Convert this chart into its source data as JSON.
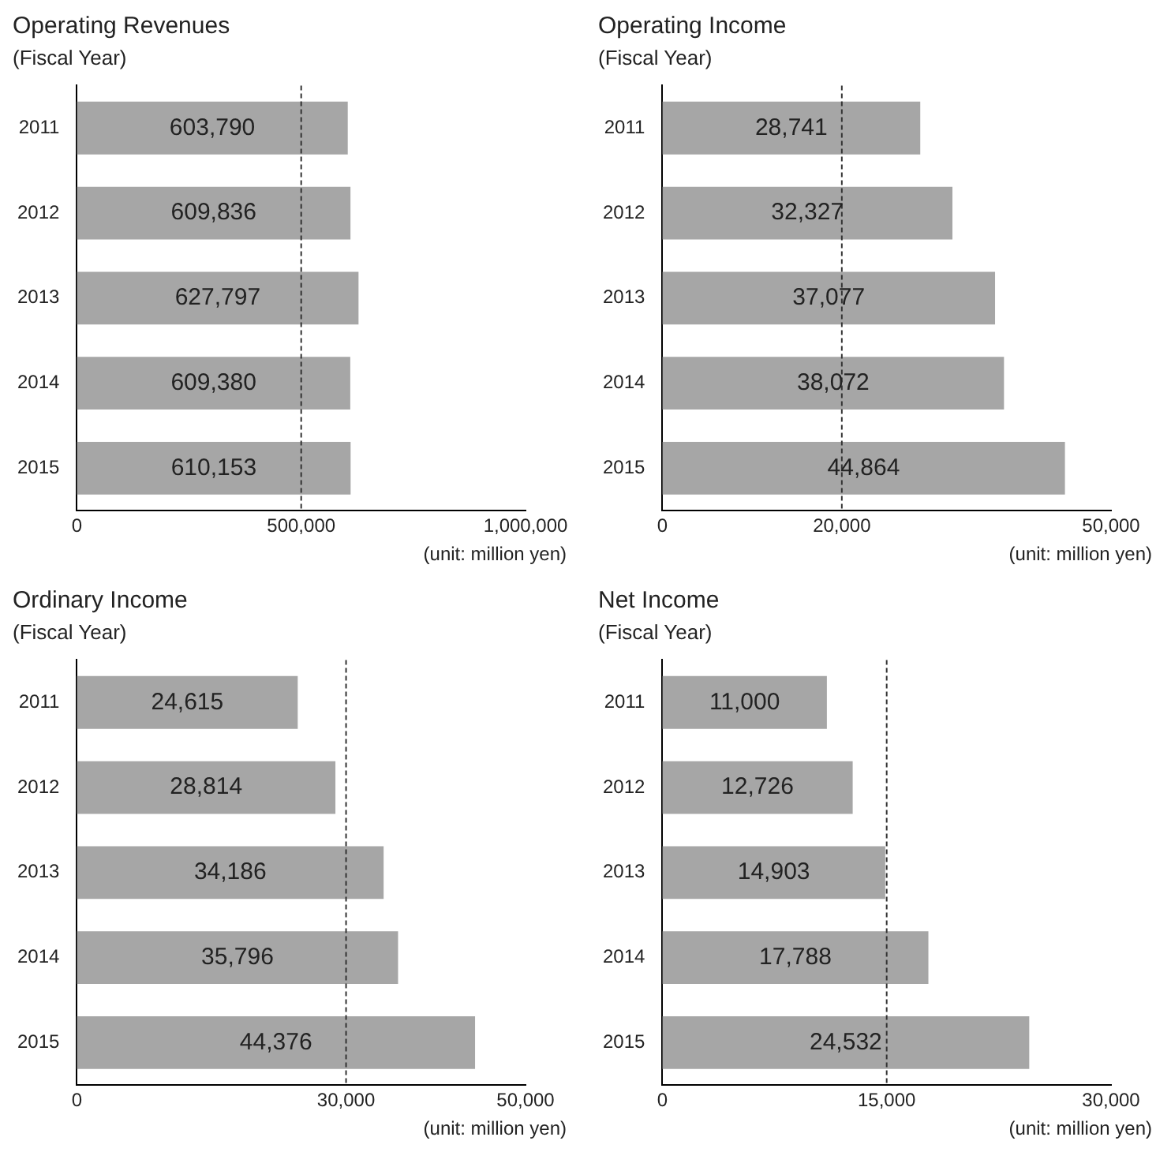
{
  "chart_data": [
    {
      "type": "bar",
      "orientation": "horizontal",
      "title": "Operating Revenues",
      "ylabel": "(Fiscal Year)",
      "categories": [
        "2011",
        "2012",
        "2013",
        "2014",
        "2015"
      ],
      "values": [
        603790,
        609836,
        627797,
        609380,
        610153
      ],
      "value_labels": [
        "603,790",
        "609,836",
        "627,797",
        "609,380",
        "610,153"
      ],
      "color": "#a6a6a6",
      "xlim": [
        0,
        1000000
      ],
      "xticks": [
        {
          "value": 0,
          "label": "0"
        },
        {
          "value": 500000,
          "label": "500,000"
        },
        {
          "value": 1000000,
          "label": "1,000,000"
        }
      ],
      "ref_lines": [
        {
          "axis": "x",
          "value": 500000,
          "line_style": "dashed"
        }
      ],
      "annotations": [
        "(unit: million yen)"
      ]
    },
    {
      "type": "bar",
      "orientation": "horizontal",
      "title": "Operating Income",
      "ylabel": "(Fiscal Year)",
      "categories": [
        "2011",
        "2012",
        "2013",
        "2014",
        "2015"
      ],
      "values": [
        28741,
        32327,
        37077,
        38072,
        44864
      ],
      "value_labels": [
        "28,741",
        "32,327",
        "37,077",
        "38,072",
        "44,864"
      ],
      "color": "#a6a6a6",
      "xlim": [
        0,
        50000
      ],
      "xticks": [
        {
          "value": 0,
          "label": "0"
        },
        {
          "value": 20000,
          "label": "20,000"
        },
        {
          "value": 50000,
          "label": "50,000"
        }
      ],
      "ref_lines": [
        {
          "axis": "x",
          "value": 20000,
          "line_style": "dashed"
        }
      ],
      "annotations": [
        "(unit: million yen)"
      ]
    },
    {
      "type": "bar",
      "orientation": "horizontal",
      "title": "Ordinary Income",
      "ylabel": "(Fiscal Year)",
      "categories": [
        "2011",
        "2012",
        "2013",
        "2014",
        "2015"
      ],
      "values": [
        24615,
        28814,
        34186,
        35796,
        44376
      ],
      "value_labels": [
        "24,615",
        "28,814",
        "34,186",
        "35,796",
        "44,376"
      ],
      "color": "#a6a6a6",
      "xlim": [
        0,
        50000
      ],
      "xticks": [
        {
          "value": 0,
          "label": "0"
        },
        {
          "value": 30000,
          "label": "30,000"
        },
        {
          "value": 50000,
          "label": "50,000"
        }
      ],
      "ref_lines": [
        {
          "axis": "x",
          "value": 30000,
          "line_style": "dashed"
        }
      ],
      "annotations": [
        "(unit: million yen)"
      ]
    },
    {
      "type": "bar",
      "orientation": "horizontal",
      "title": "Net Income",
      "ylabel": "(Fiscal Year)",
      "categories": [
        "2011",
        "2012",
        "2013",
        "2014",
        "2015"
      ],
      "values": [
        11000,
        12726,
        14903,
        17788,
        24532
      ],
      "value_labels": [
        "11,000",
        "12,726",
        "14,903",
        "17,788",
        "24,532"
      ],
      "color": "#a6a6a6",
      "xlim": [
        0,
        30000
      ],
      "xticks": [
        {
          "value": 0,
          "label": "0"
        },
        {
          "value": 15000,
          "label": "15,000"
        },
        {
          "value": 30000,
          "label": "30,000"
        }
      ],
      "ref_lines": [
        {
          "axis": "x",
          "value": 15000,
          "line_style": "dashed"
        }
      ],
      "annotations": [
        "(unit: million yen)"
      ]
    }
  ]
}
